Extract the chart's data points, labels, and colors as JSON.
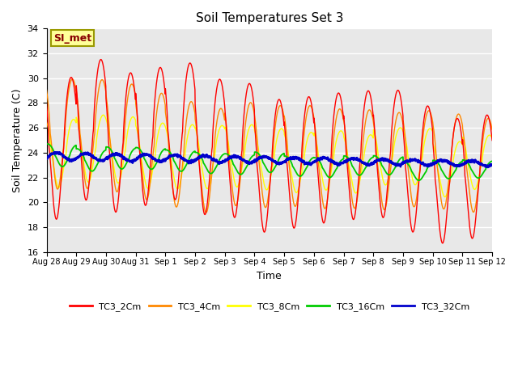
{
  "title": "Soil Temperatures Set 3",
  "xlabel": "Time",
  "ylabel": "Soil Temperature (C)",
  "ylim": [
    16,
    34
  ],
  "yticks": [
    16,
    18,
    20,
    22,
    24,
    26,
    28,
    30,
    32,
    34
  ],
  "background_color": "#e8e8e8",
  "fig_background": "#ffffff",
  "annotation_text": "SI_met",
  "annotation_bg": "#ffff99",
  "annotation_border": "#999900",
  "annotation_text_color": "#880000",
  "series_colors": {
    "TC3_2Cm": "#ff0000",
    "TC3_4Cm": "#ff8800",
    "TC3_8Cm": "#ffff00",
    "TC3_16Cm": "#00cc00",
    "TC3_32Cm": "#0000cc"
  },
  "tick_labels": [
    "Aug 28",
    "Aug 29",
    "Aug 30",
    "Aug 31",
    "Sep 1",
    "Sep 2",
    "Sep 3",
    "Sep 4",
    "Sep 5",
    "Sep 6",
    "Sep 7",
    "Sep 8",
    "Sep 9",
    "Sep 10",
    "Sep 11",
    "Sep 12"
  ],
  "tick_positions": [
    0,
    1,
    2,
    3,
    4,
    5,
    6,
    7,
    8,
    9,
    10,
    11,
    12,
    13,
    14,
    15
  ]
}
